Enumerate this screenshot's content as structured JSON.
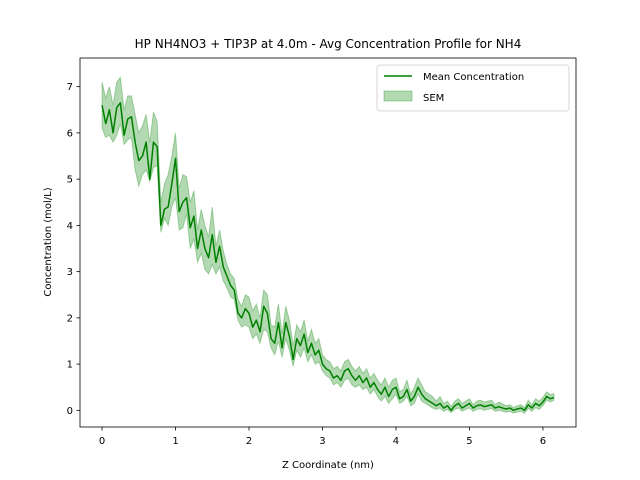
{
  "chart_data": {
    "type": "line",
    "title": "HP NH4NO3 + TIP3P at 4.0m - Avg Concentration Profile for NH4",
    "xlabel": "Z Coordinate (nm)",
    "ylabel": "Concentration (mol/L)",
    "xlim": [
      -0.3,
      6.45
    ],
    "ylim": [
      -0.36,
      7.62
    ],
    "xticks": [
      0,
      1,
      2,
      3,
      4,
      5,
      6
    ],
    "yticks": [
      0,
      1,
      2,
      3,
      4,
      5,
      6,
      7
    ],
    "grid": false,
    "legend_position": "top-right",
    "colors": {
      "line": "#008000",
      "band_fill": "#008000",
      "band_alpha": 0.3
    },
    "series": [
      {
        "name": "Mean Concentration",
        "x": [
          0.0,
          0.05,
          0.1,
          0.15,
          0.2,
          0.25,
          0.3,
          0.35,
          0.4,
          0.45,
          0.5,
          0.55,
          0.6,
          0.65,
          0.7,
          0.75,
          0.8,
          0.85,
          0.9,
          0.95,
          1.0,
          1.05,
          1.1,
          1.15,
          1.2,
          1.25,
          1.3,
          1.35,
          1.4,
          1.45,
          1.5,
          1.55,
          1.6,
          1.65,
          1.7,
          1.75,
          1.8,
          1.85,
          1.9,
          1.95,
          2.0,
          2.05,
          2.1,
          2.15,
          2.2,
          2.25,
          2.3,
          2.35,
          2.4,
          2.45,
          2.5,
          2.55,
          2.6,
          2.65,
          2.7,
          2.75,
          2.8,
          2.85,
          2.9,
          2.95,
          3.0,
          3.05,
          3.1,
          3.15,
          3.2,
          3.25,
          3.3,
          3.35,
          3.4,
          3.45,
          3.5,
          3.55,
          3.6,
          3.65,
          3.7,
          3.75,
          3.8,
          3.85,
          3.9,
          3.95,
          4.0,
          4.05,
          4.1,
          4.15,
          4.2,
          4.25,
          4.3,
          4.35,
          4.4,
          4.45,
          4.5,
          4.55,
          4.6,
          4.65,
          4.7,
          4.75,
          4.8,
          4.85,
          4.9,
          4.95,
          5.0,
          5.05,
          5.1,
          5.15,
          5.2,
          5.25,
          5.3,
          5.35,
          5.4,
          5.45,
          5.5,
          5.55,
          5.6,
          5.65,
          5.7,
          5.75,
          5.8,
          5.85,
          5.9,
          5.95,
          6.0,
          6.05,
          6.1,
          6.15
        ],
        "y": [
          6.6,
          6.2,
          6.5,
          6.0,
          6.55,
          6.65,
          5.95,
          6.3,
          6.35,
          5.8,
          5.4,
          5.5,
          5.8,
          5.0,
          5.8,
          5.7,
          4.0,
          4.35,
          4.4,
          4.9,
          5.45,
          4.3,
          4.5,
          4.6,
          3.95,
          4.2,
          3.5,
          3.9,
          3.5,
          3.3,
          3.8,
          3.2,
          3.55,
          3.1,
          2.9,
          2.7,
          2.6,
          2.1,
          2.0,
          2.2,
          2.1,
          1.8,
          1.95,
          1.7,
          2.25,
          2.1,
          1.55,
          1.45,
          1.9,
          1.35,
          1.9,
          1.6,
          1.1,
          1.55,
          1.4,
          1.65,
          1.25,
          1.45,
          1.2,
          1.3,
          1.0,
          0.9,
          0.85,
          0.7,
          0.75,
          0.65,
          0.85,
          0.9,
          0.75,
          0.65,
          0.75,
          0.6,
          0.7,
          0.5,
          0.6,
          0.45,
          0.35,
          0.5,
          0.3,
          0.45,
          0.5,
          0.25,
          0.3,
          0.45,
          0.2,
          0.3,
          0.5,
          0.35,
          0.25,
          0.2,
          0.15,
          0.1,
          0.15,
          0.05,
          0.1,
          0.0,
          0.1,
          0.15,
          0.05,
          0.1,
          0.15,
          0.05,
          0.1,
          0.12,
          0.08,
          0.1,
          0.12,
          0.05,
          0.08,
          0.05,
          0.03,
          0.05,
          0.0,
          0.03,
          0.05,
          0.0,
          0.12,
          0.05,
          0.15,
          0.1,
          0.18,
          0.3,
          0.25,
          0.28
        ]
      }
    ],
    "band": {
      "name": "SEM",
      "lower": [
        6.1,
        5.9,
        5.95,
        5.8,
        5.95,
        6.2,
        5.75,
        5.85,
        5.9,
        5.2,
        4.85,
        5.1,
        5.2,
        4.95,
        5.25,
        5.3,
        3.85,
        4.15,
        4.0,
        4.4,
        4.6,
        3.9,
        3.95,
        4.25,
        3.5,
        3.7,
        3.2,
        3.4,
        3.05,
        2.95,
        3.15,
        2.95,
        3.1,
        2.8,
        2.65,
        2.45,
        2.4,
        1.95,
        1.8,
        1.85,
        1.8,
        1.55,
        1.65,
        1.45,
        1.75,
        1.7,
        1.35,
        1.2,
        1.5,
        1.15,
        1.55,
        1.3,
        0.95,
        1.3,
        1.15,
        1.35,
        1.05,
        1.2,
        1.0,
        1.05,
        0.85,
        0.75,
        0.7,
        0.55,
        0.6,
        0.5,
        0.65,
        0.7,
        0.55,
        0.5,
        0.55,
        0.45,
        0.5,
        0.35,
        0.45,
        0.3,
        0.2,
        0.3,
        0.15,
        0.25,
        0.35,
        0.15,
        0.2,
        0.3,
        0.1,
        0.15,
        0.35,
        0.2,
        0.15,
        0.1,
        0.05,
        0.02,
        0.05,
        -0.02,
        0.02,
        -0.05,
        0.02,
        0.05,
        -0.02,
        0.02,
        0.05,
        -0.02,
        0.02,
        0.04,
        0.0,
        0.02,
        0.04,
        -0.02,
        0.0,
        -0.02,
        -0.04,
        -0.02,
        -0.06,
        -0.04,
        -0.02,
        -0.06,
        0.04,
        -0.02,
        0.06,
        0.02,
        0.1,
        0.22,
        0.18,
        0.22
      ],
      "upper": [
        7.1,
        6.75,
        7.0,
        6.6,
        7.1,
        7.2,
        6.5,
        6.8,
        6.8,
        6.4,
        6.0,
        6.15,
        6.4,
        5.8,
        6.45,
        6.25,
        4.5,
        4.9,
        5.1,
        5.5,
        6.0,
        4.8,
        5.1,
        5.05,
        4.5,
        4.75,
        3.9,
        4.35,
        4.0,
        3.75,
        4.4,
        3.55,
        3.9,
        3.45,
        3.15,
        2.95,
        2.85,
        2.4,
        2.25,
        2.5,
        2.45,
        2.15,
        2.3,
        2.0,
        2.6,
        2.5,
        1.85,
        1.8,
        2.3,
        1.65,
        2.25,
        1.95,
        1.4,
        1.85,
        1.7,
        1.95,
        1.5,
        1.75,
        1.45,
        1.55,
        1.2,
        1.1,
        1.05,
        0.9,
        0.95,
        0.85,
        1.05,
        1.1,
        0.95,
        0.85,
        0.95,
        0.8,
        0.9,
        0.7,
        0.8,
        0.65,
        0.55,
        0.7,
        0.5,
        0.65,
        0.7,
        0.4,
        0.45,
        0.65,
        0.35,
        0.5,
        0.7,
        0.55,
        0.4,
        0.35,
        0.3,
        0.2,
        0.3,
        0.15,
        0.2,
        0.08,
        0.2,
        0.25,
        0.15,
        0.2,
        0.25,
        0.12,
        0.2,
        0.22,
        0.18,
        0.2,
        0.22,
        0.12,
        0.18,
        0.14,
        0.1,
        0.12,
        0.06,
        0.1,
        0.12,
        0.06,
        0.22,
        0.12,
        0.25,
        0.2,
        0.28,
        0.4,
        0.34,
        0.36
      ]
    },
    "legend": [
      {
        "label": "Mean Concentration",
        "kind": "line"
      },
      {
        "label": "SEM",
        "kind": "patch"
      }
    ]
  }
}
